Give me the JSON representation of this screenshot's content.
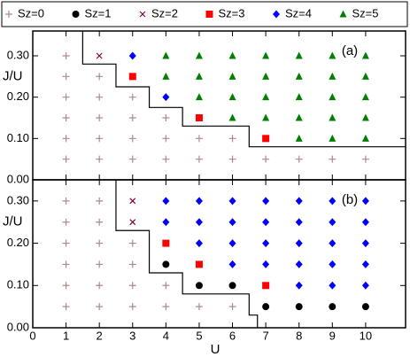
{
  "chart_data": {
    "type": "scatter",
    "xlabel": "U",
    "xlim": [
      0,
      11.2
    ],
    "xticks": [
      0,
      1,
      2,
      3,
      4,
      5,
      6,
      7,
      8,
      9,
      10
    ],
    "series": [
      {
        "name": "Sz=0",
        "color": "#b08888",
        "marker": "plus"
      },
      {
        "name": "Sz=1",
        "color": "#000000",
        "marker": "circle"
      },
      {
        "name": "Sz=2",
        "color": "#7a0040",
        "marker": "cross"
      },
      {
        "name": "Sz=3",
        "color": "#ff0000",
        "marker": "square"
      },
      {
        "name": "Sz=4",
        "color": "#0000ff",
        "marker": "diamond"
      },
      {
        "name": "Sz=5",
        "color": "#008000",
        "marker": "triangle"
      }
    ],
    "panels": [
      {
        "annotation": "(a)",
        "ylabel": "J/U",
        "ylim": [
          0,
          0.36
        ],
        "yticks": [
          {
            "value": 0,
            "label": "0.00"
          },
          {
            "value": 0.1,
            "label": "0.10"
          },
          {
            "value": 0.2,
            "label": "0.20"
          },
          {
            "value": 0.3,
            "label": "0.30"
          }
        ],
        "points": [
          {
            "x": [
              1,
              1,
              2,
              1,
              2,
              3,
              1,
              2,
              3,
              4,
              1,
              2,
              3,
              4,
              5,
              6,
              1,
              2,
              3,
              4,
              5,
              6,
              7,
              8,
              9,
              10
            ],
            "y": [
              0.3,
              0.25,
              0.25,
              0.2,
              0.2,
              0.2,
              0.15,
              0.15,
              0.15,
              0.15,
              0.1,
              0.1,
              0.1,
              0.1,
              0.1,
              0.1,
              0.05,
              0.05,
              0.05,
              0.05,
              0.05,
              0.05,
              0.05,
              0.05,
              0.05,
              0.05
            ]
          },
          {
            "x": [],
            "y": []
          },
          {
            "x": [
              2
            ],
            "y": [
              0.3
            ]
          },
          {
            "x": [
              3,
              5,
              7
            ],
            "y": [
              0.25,
              0.15,
              0.1
            ]
          },
          {
            "x": [
              3,
              4
            ],
            "y": [
              0.3,
              0.2
            ]
          },
          {
            "x": [
              4,
              5,
              6,
              7,
              8,
              9,
              10,
              4,
              5,
              6,
              7,
              8,
              9,
              10,
              5,
              6,
              7,
              8,
              9,
              10,
              6,
              7,
              8,
              9,
              10,
              8,
              9,
              10
            ],
            "y": [
              0.3,
              0.3,
              0.3,
              0.3,
              0.3,
              0.3,
              0.3,
              0.25,
              0.25,
              0.25,
              0.25,
              0.25,
              0.25,
              0.25,
              0.2,
              0.2,
              0.2,
              0.2,
              0.2,
              0.2,
              0.15,
              0.15,
              0.15,
              0.15,
              0.15,
              0.1,
              0.1,
              0.1
            ]
          }
        ],
        "boundary": {
          "x": [
            1.5,
            1.5,
            2.5,
            2.5,
            3.5,
            3.5,
            4.5,
            4.5,
            6.5,
            6.5,
            11.2
          ],
          "y": [
            0.36,
            0.28,
            0.28,
            0.225,
            0.225,
            0.175,
            0.175,
            0.13,
            0.13,
            0.08,
            0.08
          ]
        }
      },
      {
        "annotation": "(b)",
        "ylabel": "J/U",
        "ylim": [
          0,
          0.35
        ],
        "yticks": [
          {
            "value": 0,
            "label": "0.00"
          },
          {
            "value": 0.1,
            "label": "0.10"
          },
          {
            "value": 0.2,
            "label": "0.20"
          },
          {
            "value": 0.3,
            "label": "0.30"
          }
        ],
        "points": [
          {
            "x": [
              1,
              2,
              1,
              2,
              1,
              2,
              3,
              1,
              2,
              3,
              1,
              2,
              3,
              4,
              1,
              2,
              3,
              4,
              5,
              6
            ],
            "y": [
              0.3,
              0.3,
              0.25,
              0.25,
              0.2,
              0.2,
              0.2,
              0.15,
              0.15,
              0.15,
              0.1,
              0.1,
              0.1,
              0.1,
              0.05,
              0.05,
              0.05,
              0.05,
              0.05,
              0.05
            ]
          },
          {
            "x": [
              4,
              5,
              6,
              7,
              8,
              9,
              10
            ],
            "y": [
              0.15,
              0.1,
              0.1,
              0.05,
              0.05,
              0.05,
              0.05
            ]
          },
          {
            "x": [
              3,
              3
            ],
            "y": [
              0.3,
              0.25
            ]
          },
          {
            "x": [
              4,
              5,
              7
            ],
            "y": [
              0.2,
              0.15,
              0.1
            ]
          },
          {
            "x": [
              4,
              5,
              6,
              7,
              8,
              9,
              10,
              4,
              5,
              6,
              7,
              8,
              9,
              10,
              5,
              6,
              7,
              8,
              9,
              10,
              6,
              7,
              8,
              9,
              10,
              8,
              9,
              10
            ],
            "y": [
              0.3,
              0.3,
              0.3,
              0.3,
              0.3,
              0.3,
              0.3,
              0.25,
              0.25,
              0.25,
              0.25,
              0.25,
              0.25,
              0.25,
              0.2,
              0.2,
              0.2,
              0.2,
              0.2,
              0.2,
              0.15,
              0.15,
              0.15,
              0.15,
              0.15,
              0.1,
              0.1,
              0.1
            ]
          },
          {
            "x": [],
            "y": []
          }
        ],
        "boundary": {
          "x": [
            2.5,
            2.5,
            3.5,
            3.5,
            4.5,
            4.5,
            6.5,
            6.5,
            6.75,
            6.75
          ],
          "y": [
            0.35,
            0.23,
            0.23,
            0.13,
            0.13,
            0.08,
            0.08,
            0.03,
            0.03,
            0
          ]
        }
      }
    ]
  }
}
